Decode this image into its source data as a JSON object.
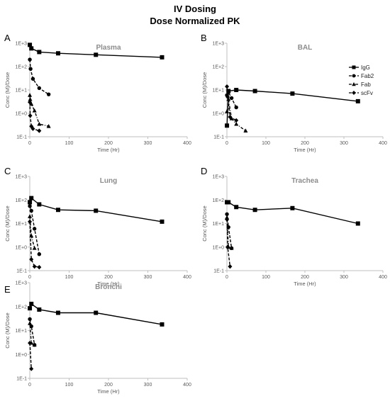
{
  "figure": {
    "title_line1": "IV Dosing",
    "title_line2": "Dose Normalized PK"
  },
  "chart_data": [
    {
      "type": "line",
      "panel_label": "A",
      "title": "Plasma",
      "xlabel": "Time (Hr)",
      "ylabel": "Conc (M)/Dose",
      "xlim": [
        0,
        400
      ],
      "xticks": [
        0,
        100,
        200,
        300,
        400
      ],
      "yscale": "log",
      "ylim": [
        0.1,
        1000
      ],
      "yticks": [
        "1E-1",
        "1E+0",
        "1E+1",
        "1E+2",
        "1E+3"
      ],
      "series": [
        {
          "name": "IgG",
          "marker": "square",
          "dash": "solid",
          "x": [
            0.1,
            4,
            24,
            72,
            168,
            336
          ],
          "y": [
            850,
            600,
            420,
            370,
            320,
            250
          ]
        },
        {
          "name": "Fab2",
          "marker": "circle",
          "dash": "dashed",
          "x": [
            0.1,
            2,
            8,
            24,
            48
          ],
          "y": [
            200,
            80,
            30,
            12,
            6.5
          ]
        },
        {
          "name": "Fab",
          "marker": "triangle",
          "dash": "dashdot",
          "x": [
            0.1,
            1,
            4,
            12,
            24,
            48
          ],
          "y": [
            6,
            4,
            2.5,
            1.3,
            0.35,
            0.28
          ]
        },
        {
          "name": "scFv",
          "marker": "diamond",
          "dash": "dashed",
          "x": [
            0.1,
            1,
            4,
            8,
            24
          ],
          "y": [
            3,
            0.8,
            0.28,
            0.22,
            0.18
          ]
        }
      ]
    },
    {
      "type": "line",
      "panel_label": "B",
      "title": "BAL",
      "xlabel": "Time (Hr)",
      "ylabel": "Conc (M)/Dose",
      "xlim": [
        0,
        400
      ],
      "xticks": [
        0,
        100,
        200,
        300,
        400
      ],
      "yscale": "log",
      "ylim": [
        0.1,
        1000
      ],
      "yticks": [
        "1E-1",
        "1E+0",
        "1E+1",
        "1E+2",
        "1E+3"
      ],
      "legend": [
        "IgG",
        "Fab2",
        "Fab",
        "scFv"
      ],
      "legend_position": "top-right",
      "series": [
        {
          "name": "IgG",
          "marker": "square",
          "dash": "solid",
          "x": [
            0.1,
            4,
            24,
            72,
            168,
            336
          ],
          "y": [
            0.3,
            9,
            10,
            9,
            7,
            3.3
          ]
        },
        {
          "name": "Fab2",
          "marker": "circle",
          "dash": "dashed",
          "x": [
            0.1,
            4,
            12,
            24
          ],
          "y": [
            6,
            8,
            4.5,
            1.8
          ]
        },
        {
          "name": "Fab",
          "marker": "triangle",
          "dash": "dashdot",
          "x": [
            0.1,
            4,
            12,
            24,
            48
          ],
          "y": [
            1.2,
            4,
            0.6,
            0.35,
            0.18
          ]
        },
        {
          "name": "scFv",
          "marker": "diamond",
          "dash": "dashed",
          "x": [
            0.1,
            2,
            8,
            24
          ],
          "y": [
            14,
            5,
            0.7,
            0.5
          ]
        }
      ]
    },
    {
      "type": "line",
      "panel_label": "C",
      "title": "Lung",
      "xlabel": "Time (Hr)",
      "ylabel": "Conc (M)/Dose",
      "xlim": [
        0,
        400
      ],
      "xticks": [
        0,
        100,
        200,
        300,
        400
      ],
      "yscale": "log",
      "ylim": [
        0.1,
        1000
      ],
      "yticks": [
        "1E-1",
        "1E+0",
        "1E+1",
        "1E+2",
        "1E+3"
      ],
      "series": [
        {
          "name": "IgG",
          "marker": "square",
          "dash": "solid",
          "x": [
            0.1,
            4,
            24,
            72,
            168,
            336
          ],
          "y": [
            80,
            120,
            65,
            38,
            35,
            12
          ]
        },
        {
          "name": "Fab2",
          "marker": "circle",
          "dash": "dashed",
          "x": [
            0.1,
            4,
            12,
            24
          ],
          "y": [
            55,
            35,
            6,
            0.5
          ]
        },
        {
          "name": "Fab",
          "marker": "triangle",
          "dash": "dashdot",
          "x": [
            0.1,
            4,
            12
          ],
          "y": [
            20,
            3,
            0.9
          ]
        },
        {
          "name": "scFv",
          "marker": "diamond",
          "dash": "dashed",
          "x": [
            0.1,
            4,
            12,
            24
          ],
          "y": [
            12,
            0.3,
            0.15,
            0.14
          ]
        }
      ]
    },
    {
      "type": "line",
      "panel_label": "D",
      "title": "Trachea",
      "xlabel": "Time (Hr)",
      "ylabel": "Conc (M)/Dose",
      "xlim": [
        0,
        400
      ],
      "xticks": [
        0,
        100,
        200,
        300,
        400
      ],
      "yscale": "log",
      "ylim": [
        0.1,
        1000
      ],
      "yticks": [
        "1E-1",
        "1E+0",
        "1E+1",
        "1E+2",
        "1E+3"
      ],
      "series": [
        {
          "name": "IgG",
          "marker": "square",
          "dash": "solid",
          "x": [
            0.1,
            4,
            24,
            72,
            168,
            336
          ],
          "y": [
            80,
            80,
            50,
            38,
            45,
            10
          ]
        },
        {
          "name": "Fab2",
          "marker": "circle",
          "dash": "dashed",
          "x": [
            0.1,
            4,
            12
          ],
          "y": [
            25,
            7,
            0.9
          ]
        },
        {
          "name": "Fab",
          "marker": "triangle",
          "dash": "dashdot",
          "x": [
            0.1,
            4,
            12
          ],
          "y": [
            18,
            1,
            0.9
          ]
        },
        {
          "name": "scFv",
          "marker": "diamond",
          "dash": "dashed",
          "x": [
            0.1,
            2,
            8
          ],
          "y": [
            15,
            1,
            0.15
          ]
        }
      ]
    },
    {
      "type": "line",
      "panel_label": "E",
      "title": "Bronchi",
      "xlabel": "Time (Hr)",
      "ylabel": "Conc (M)/Dose",
      "xlim": [
        0,
        400
      ],
      "xticks": [
        0,
        100,
        200,
        300,
        400
      ],
      "yscale": "log",
      "ylim": [
        0.1,
        1000
      ],
      "yticks": [
        "1E-1",
        "1E+0",
        "1E+1",
        "1E+2",
        "1E+3"
      ],
      "series": [
        {
          "name": "IgG",
          "marker": "square",
          "dash": "solid",
          "x": [
            0.1,
            4,
            24,
            72,
            168,
            336
          ],
          "y": [
            85,
            130,
            75,
            55,
            55,
            18
          ]
        },
        {
          "name": "Fab2",
          "marker": "circle",
          "dash": "dashed",
          "x": [
            0.1,
            4,
            12
          ],
          "y": [
            30,
            15,
            2.5
          ]
        },
        {
          "name": "Fab",
          "marker": "triangle",
          "dash": "dashdot",
          "x": [
            0.1,
            4,
            12
          ],
          "y": [
            20,
            3,
            2.5
          ]
        },
        {
          "name": "scFv",
          "marker": "diamond",
          "dash": "dashed",
          "x": [
            0.1,
            4
          ],
          "y": [
            3,
            0.25
          ]
        }
      ]
    }
  ]
}
